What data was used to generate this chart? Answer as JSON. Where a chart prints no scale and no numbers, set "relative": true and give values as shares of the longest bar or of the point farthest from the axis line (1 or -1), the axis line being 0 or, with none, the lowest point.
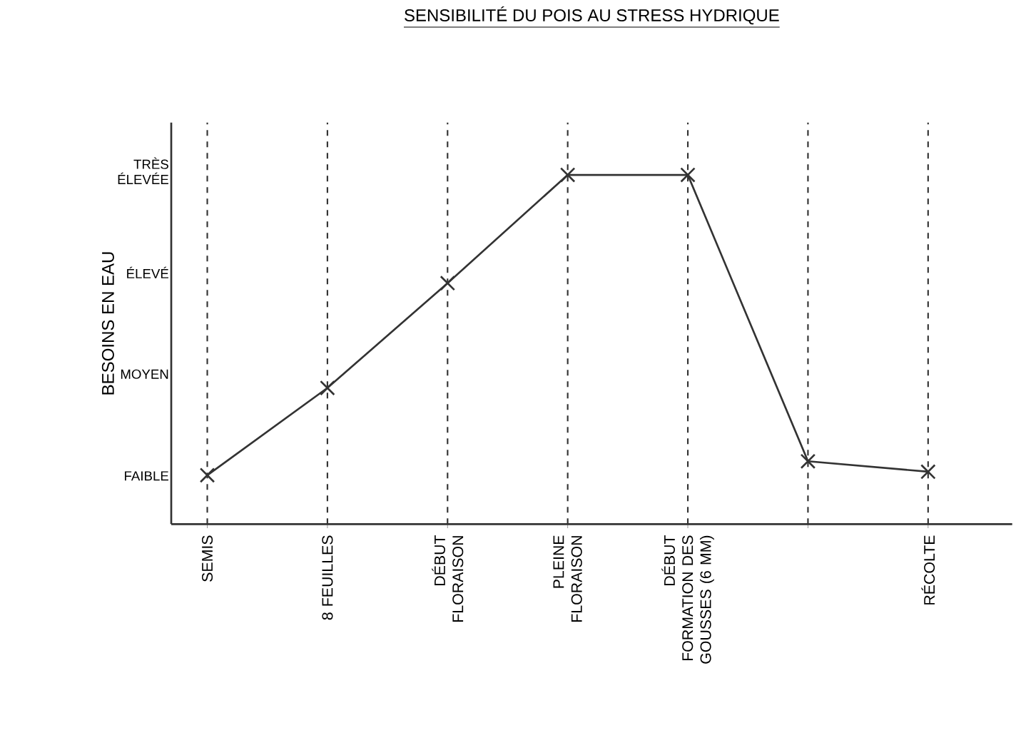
{
  "chart_data": {
    "type": "line",
    "title": "SENSIBILITÉ DU POIS AU STRESS HYDRIQUE",
    "ylabel": "BESOINS EN EAU",
    "categories": [
      "SEMIS",
      "8 FEUILLES",
      "DÉBUT FLORAISON",
      "PLEINE FLORAISON",
      "DÉBUT FORMATION DES GOUSSES (6 MM)",
      null,
      "RÉCOLTE"
    ],
    "series": [
      {
        "color": "#333333",
        "values": [
          0.14,
          0.39,
          0.69,
          1,
          1,
          0.18,
          0.15
        ]
      }
    ],
    "relative": true,
    "annotations": [
      "FAIBLE",
      "MOYEN",
      "ÉLEVÉ",
      "TRÈS ÉLEVÉE"
    ],
    "grid": "x",
    "marker": "cross",
    "line_style": "solid"
  }
}
